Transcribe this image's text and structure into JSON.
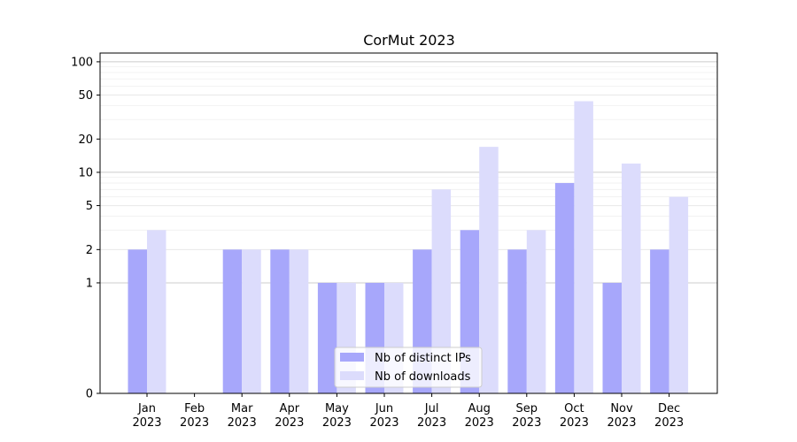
{
  "chart_data": {
    "type": "bar",
    "title": "CorMut 2023",
    "xlabel": "",
    "ylabel": "",
    "y_scale": "symlog",
    "ylim": [
      0,
      120
    ],
    "y_ticks": [
      0,
      1,
      2,
      5,
      10,
      20,
      50,
      100
    ],
    "categories": [
      "Jan\n2023",
      "Feb\n2023",
      "Mar\n2023",
      "Apr\n2023",
      "May\n2023",
      "Jun\n2023",
      "Jul\n2023",
      "Aug\n2023",
      "Sep\n2023",
      "Oct\n2023",
      "Nov\n2023",
      "Dec\n2023"
    ],
    "series": [
      {
        "name": "Nb of distinct IPs",
        "color": "#a7a7fb",
        "values": [
          2,
          0,
          2,
          2,
          1,
          1,
          2,
          3,
          2,
          8,
          1,
          2
        ]
      },
      {
        "name": "Nb of downloads",
        "color": "#dcdcfc",
        "values": [
          3,
          0,
          2,
          2,
          1,
          1,
          7,
          17,
          3,
          44,
          12,
          6
        ]
      }
    ],
    "grid": "horizontal",
    "legend_position": "lower center"
  }
}
